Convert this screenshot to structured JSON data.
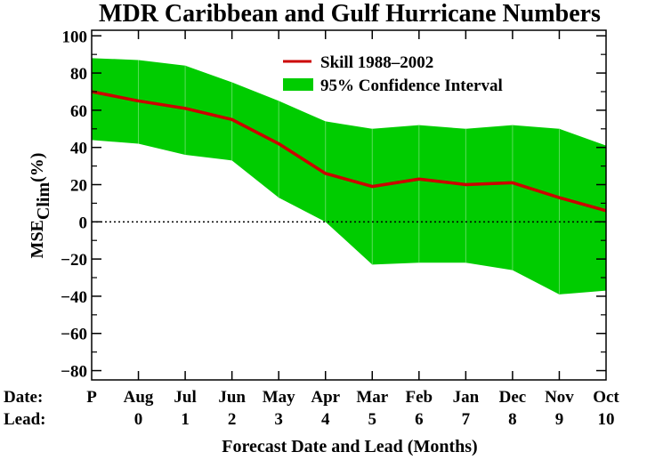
{
  "chart_data": {
    "type": "line",
    "title": "MDR Caribbean and Gulf Hurricane Numbers",
    "xlabel": "Forecast Date and Lead (Months)",
    "ylabel_main": "MSE",
    "ylabel_sub": "Clim",
    "ylabel_unit": "(%)",
    "row_labels": {
      "date": "Date:",
      "lead": "Lead:"
    },
    "categories": [
      "P",
      "Aug",
      "Jul",
      "Jun",
      "May",
      "Apr",
      "Mar",
      "Feb",
      "Jan",
      "Dec",
      "Nov",
      "Oct"
    ],
    "leads": [
      "",
      "0",
      "1",
      "2",
      "3",
      "4",
      "5",
      "6",
      "7",
      "8",
      "9",
      "10"
    ],
    "ylim": [
      -85,
      103
    ],
    "yticks": [
      -80,
      -60,
      -40,
      -20,
      0,
      20,
      40,
      60,
      80,
      100
    ],
    "ytick_labels": [
      "−80",
      "−60",
      "−40",
      "−20",
      "0",
      "20",
      "40",
      "60",
      "80",
      "100"
    ],
    "zero_line": {
      "value": 0,
      "style": "dotted"
    },
    "series": [
      {
        "name": "Skill 1988–2002",
        "color": "#cc0000",
        "values": [
          70,
          65,
          61,
          55,
          42,
          26,
          19,
          23,
          20,
          21,
          13,
          6
        ]
      }
    ],
    "band": {
      "name": "95% Confidence Interval",
      "color": "#00cc00",
      "upper": [
        88,
        87,
        84,
        75,
        65,
        54,
        50,
        52,
        50,
        52,
        50,
        41
      ],
      "lower": [
        44,
        42,
        36,
        33,
        13,
        0,
        -23,
        -22,
        -22,
        -26,
        -39,
        -37
      ]
    },
    "legend_position": "top-right"
  }
}
